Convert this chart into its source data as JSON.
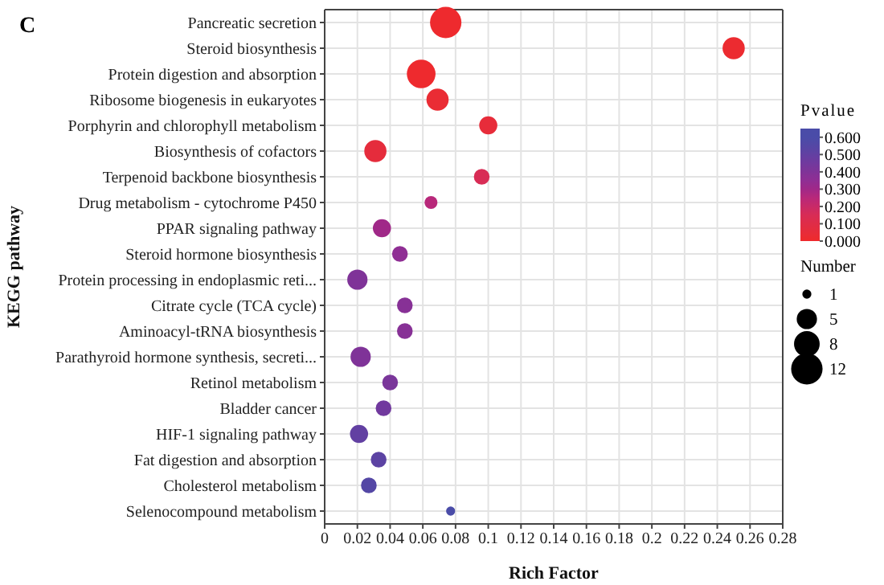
{
  "chart_data": {
    "type": "bubble",
    "title": "C",
    "xlabel": "Rich Factor",
    "ylabel": "KEGG pathway",
    "clabel": "Pvalue",
    "legend_title": "Number",
    "categories": [
      "Pancreatic secretion",
      "Steroid biosynthesis",
      "Protein digestion and absorption",
      "Ribosome biogenesis in eukaryotes",
      "Porphyrin and chlorophyll metabolism",
      "Biosynthesis of cofactors",
      "Terpenoid backbone biosynthesis",
      "Drug metabolism - cytochrome P450",
      "PPAR signaling pathway",
      "Steroid hormone biosynthesis",
      "Protein processing in endoplasmic reti...",
      "Citrate cycle (TCA cycle)",
      "Aminoacyl-tRNA biosynthesis",
      "Parathyroid hormone synthesis, secreti...",
      "Retinol metabolism",
      "Bladder cancer",
      "HIF-1 signaling pathway",
      "Fat digestion and absorption",
      "Cholesterol metabolism",
      "Selenocompound metabolism"
    ],
    "values": [
      0.074,
      0.25,
      0.059,
      0.069,
      0.1,
      0.031,
      0.096,
      0.065,
      0.035,
      0.046,
      0.02,
      0.049,
      0.049,
      0.022,
      0.04,
      0.036,
      0.021,
      0.033,
      0.027,
      0.077
    ],
    "sizes": [
      12,
      6,
      10,
      6,
      4,
      6,
      3,
      2,
      4,
      3,
      5,
      3,
      3,
      5,
      3,
      3,
      4,
      3,
      3,
      1
    ],
    "cvalues": [
      0.01,
      0.02,
      0.01,
      0.03,
      0.05,
      0.06,
      0.15,
      0.25,
      0.3,
      0.35,
      0.4,
      0.38,
      0.38,
      0.4,
      0.42,
      0.45,
      0.5,
      0.52,
      0.55,
      0.6
    ],
    "colors": [
      "#ee2a2e",
      "#ec2b30",
      "#ee2a2e",
      "#ea2c34",
      "#e72c3a",
      "#e52c3c",
      "#d82c55",
      "#b8287a",
      "#a02888",
      "#8f2e94",
      "#7f3398",
      "#873196",
      "#873196",
      "#7f3398",
      "#7a369a",
      "#71399e",
      "#6240a2",
      "#5c43a3",
      "#5447a5",
      "#4a4ca8"
    ],
    "size_legend": [
      1,
      5,
      8,
      12
    ],
    "clim": [
      0,
      0.65
    ],
    "cticks": [
      {
        "value": 0,
        "label": "0.000"
      },
      {
        "value": 0.1,
        "label": "0.100"
      },
      {
        "value": 0.2,
        "label": "0.200"
      },
      {
        "value": 0.3,
        "label": "0.300"
      },
      {
        "value": 0.4,
        "label": "0.400"
      },
      {
        "value": 0.5,
        "label": "0.500"
      },
      {
        "value": 0.6,
        "label": "0.600"
      }
    ],
    "xlim": [
      0,
      0.28
    ],
    "xticks": [
      0,
      0.02,
      0.04,
      0.06,
      0.08,
      0.1,
      0.12,
      0.14,
      0.16,
      0.18,
      0.2,
      0.22,
      0.24,
      0.26,
      0.28
    ],
    "grid": true,
    "orientation": "horizontal"
  }
}
